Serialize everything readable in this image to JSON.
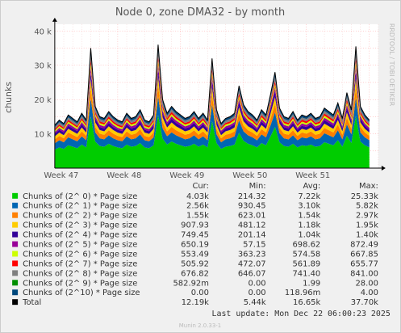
{
  "colors": {
    "background": "#f0f0f0",
    "canvas": "#ffffff",
    "grid": "#ff9999",
    "axis": "#000000",
    "text": "#555555",
    "watermark": "#bbbbbb"
  },
  "chart_data": {
    "type": "area",
    "title": "Node 0, zone DMA32 - by month",
    "ylabel": "chunks",
    "ylim": [
      0,
      42000
    ],
    "yticks": [
      {
        "value": 10000,
        "label": "10 k"
      },
      {
        "value": 20000,
        "label": "20 k"
      },
      {
        "value": 30000,
        "label": "30 k"
      },
      {
        "value": 40000,
        "label": "40 k"
      }
    ],
    "xrange": [
      0,
      36
    ],
    "xticks": [
      {
        "value": 0,
        "label": "Week 47"
      },
      {
        "value": 7,
        "label": "Week 48"
      },
      {
        "value": 14,
        "label": "Week 49"
      },
      {
        "value": 21,
        "label": "Week 50"
      },
      {
        "value": 28,
        "label": "Week 51"
      }
    ],
    "stacked": true,
    "x_days": [
      0,
      0.5,
      1,
      1.5,
      2,
      2.5,
      3,
      3.5,
      4,
      4.5,
      5,
      5.5,
      6,
      6.5,
      7,
      7.5,
      8,
      8.5,
      9,
      9.5,
      10,
      10.5,
      11,
      11.5,
      12,
      12.5,
      13,
      13.5,
      14,
      14.5,
      15,
      15.5,
      16,
      16.5,
      17,
      17.5,
      18,
      18.5,
      19,
      19.5,
      20,
      20.5,
      21,
      21.5,
      22,
      22.5,
      23,
      23.5,
      24,
      24.5,
      25,
      25.5,
      26,
      26.5,
      27,
      27.5,
      28,
      28.5,
      29,
      29.5,
      30,
      30.5,
      31,
      31.5,
      32,
      32.5,
      33,
      33.5,
      34,
      34.5,
      35
    ],
    "total_values": [
      12500,
      14000,
      13000,
      15500,
      14500,
      13500,
      16000,
      14000,
      35000,
      18000,
      15000,
      14500,
      16500,
      15000,
      14000,
      13500,
      16000,
      14500,
      15000,
      17000,
      14000,
      13500,
      15500,
      36000,
      20000,
      16000,
      18000,
      16500,
      15500,
      14500,
      15000,
      16500,
      14500,
      16000,
      14000,
      32000,
      17000,
      13000,
      14500,
      15000,
      16000,
      24000,
      18500,
      16500,
      15500,
      14000,
      17000,
      15500,
      21500,
      28000,
      17500,
      15000,
      14500,
      16500,
      14000,
      15500,
      15000,
      16000,
      14500,
      15000,
      17500,
      16500,
      15500,
      19000,
      14500,
      22000,
      17000,
      35500,
      18000,
      15500,
      14000
    ],
    "series": [
      {
        "name": "Chunks of (2^ 0) * Page size",
        "color": "#00cc00",
        "fraction": 0.43
      },
      {
        "name": "Chunks of (2^ 1) * Page size",
        "color": "#0066b3",
        "fraction": 0.15
      },
      {
        "name": "Chunks of (2^ 2) * Page size",
        "color": "#ff8000",
        "fraction": 0.09
      },
      {
        "name": "Chunks of (2^ 3) * Page size",
        "color": "#ffcc00",
        "fraction": 0.07
      },
      {
        "name": "Chunks of (2^ 4) * Page size",
        "color": "#330099",
        "fraction": 0.06
      },
      {
        "name": "Chunks of (2^ 5) * Page size",
        "color": "#990099",
        "fraction": 0.04
      },
      {
        "name": "Chunks of (2^ 6) * Page size",
        "color": "#ccff00",
        "fraction": 0.035
      },
      {
        "name": "Chunks of (2^ 7) * Page size",
        "color": "#ff0000",
        "fraction": 0.035
      },
      {
        "name": "Chunks of (2^ 8) * Page size",
        "color": "#808080",
        "fraction": 0.045
      },
      {
        "name": "Chunks of (2^ 9) * Page size",
        "color": "#008f00",
        "fraction": 0.0
      },
      {
        "name": "Chunks of (2^10) * Page size",
        "color": "#00487d",
        "fraction": 0.05
      }
    ]
  },
  "legend": {
    "headers": {
      "cur": "Cur:",
      "min": "Min:",
      "avg": "Avg:",
      "max": "Max:"
    },
    "rows": [
      {
        "label": "Chunks of (2^ 0) * Page size",
        "color": "#00cc00",
        "cur": "4.03k",
        "min": "214.32",
        "avg": "7.22k",
        "max": "25.33k"
      },
      {
        "label": "Chunks of (2^ 1) * Page size",
        "color": "#0066b3",
        "cur": "2.56k",
        "min": "930.45",
        "avg": "3.10k",
        "max": "5.82k"
      },
      {
        "label": "Chunks of (2^ 2) * Page size",
        "color": "#ff8000",
        "cur": "1.55k",
        "min": "623.01",
        "avg": "1.54k",
        "max": "2.97k"
      },
      {
        "label": "Chunks of (2^ 3) * Page size",
        "color": "#ffcc00",
        "cur": "907.93",
        "min": "481.12",
        "avg": "1.18k",
        "max": "1.95k"
      },
      {
        "label": "Chunks of (2^ 4) * Page size",
        "color": "#330099",
        "cur": "749.45",
        "min": "201.14",
        "avg": "1.04k",
        "max": "1.40k"
      },
      {
        "label": "Chunks of (2^ 5) * Page size",
        "color": "#990099",
        "cur": "650.19",
        "min": "57.15",
        "avg": "698.62",
        "max": "872.49"
      },
      {
        "label": "Chunks of (2^ 6) * Page size",
        "color": "#ccff00",
        "cur": "553.49",
        "min": "363.23",
        "avg": "574.58",
        "max": "667.85"
      },
      {
        "label": "Chunks of (2^ 7) * Page size",
        "color": "#ff0000",
        "cur": "505.92",
        "min": "472.07",
        "avg": "561.89",
        "max": "655.77"
      },
      {
        "label": "Chunks of (2^ 8) * Page size",
        "color": "#808080",
        "cur": "676.82",
        "min": "646.07",
        "avg": "741.40",
        "max": "841.00"
      },
      {
        "label": "Chunks of (2^ 9) * Page size",
        "color": "#008f00",
        "cur": "582.92m",
        "min": "0.00",
        "avg": "1.99",
        "max": "28.00"
      },
      {
        "label": "Chunks of (2^10) * Page size",
        "color": "#00487d",
        "cur": "0.00",
        "min": "0.00",
        "avg": "118.96m",
        "max": "4.00"
      },
      {
        "label": "Total",
        "color": "#000000",
        "cur": "12.19k",
        "min": "5.44k",
        "avg": "16.65k",
        "max": "37.70k"
      }
    ]
  },
  "last_update": "Last update:  Mon Dec 22 06:00:23 2025",
  "watermark": "RRDTOOL / TOBI OETIKER",
  "footer": "Munin 2.0.33-1"
}
